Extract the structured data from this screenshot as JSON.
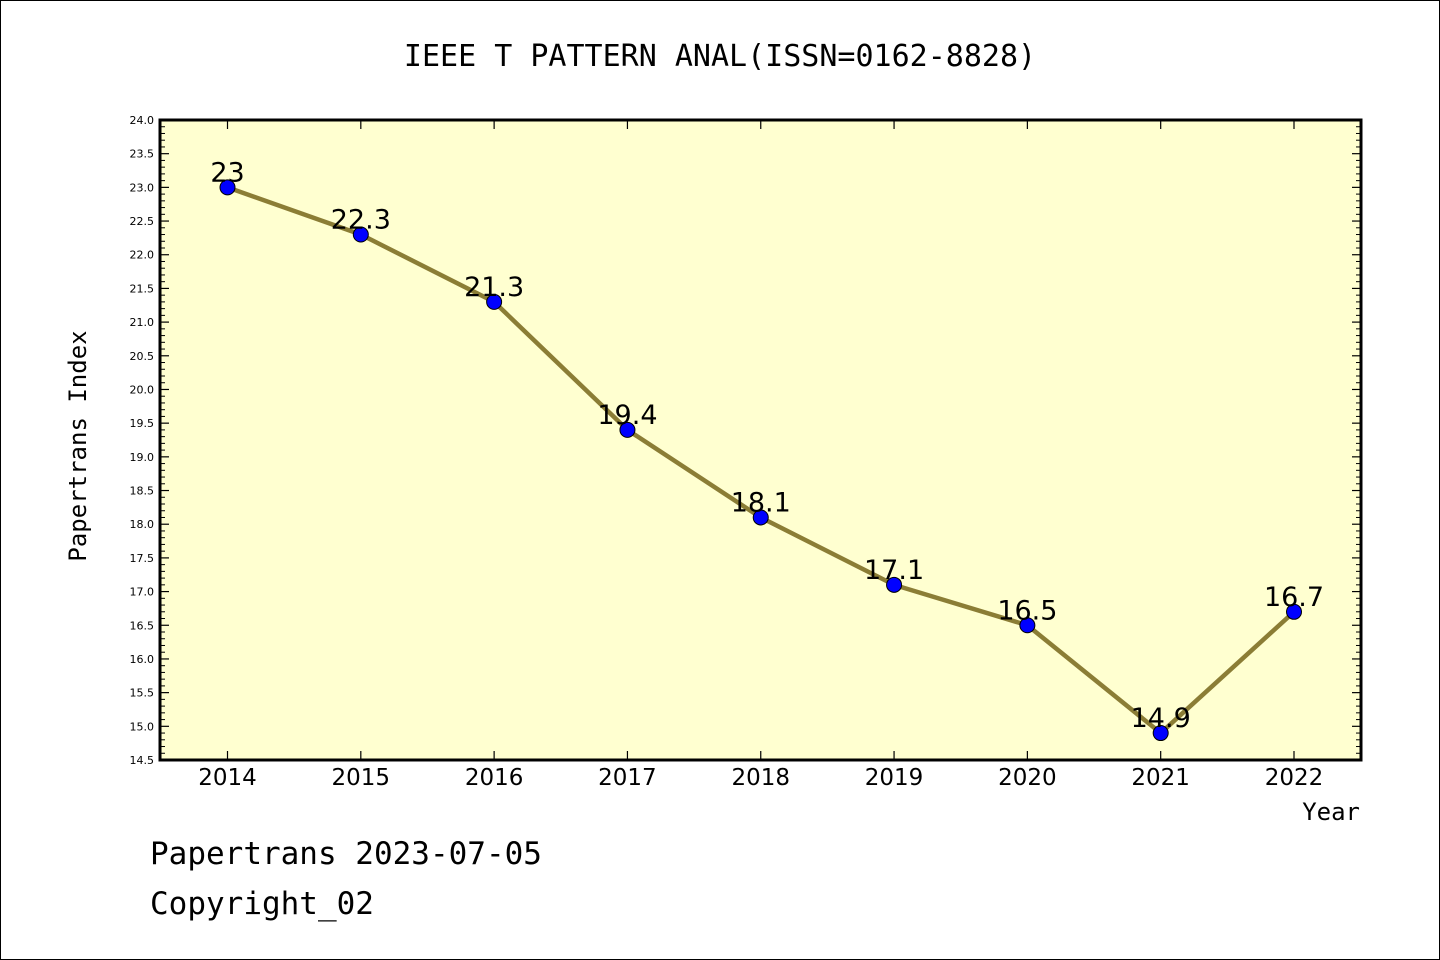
{
  "chart_data": {
    "type": "line",
    "title": "IEEE T PATTERN ANAL(ISSN=0162-8828)",
    "xlabel": "Year",
    "ylabel": "Papertrans Index",
    "categories": [
      "2014",
      "2015",
      "2016",
      "2017",
      "2018",
      "2019",
      "2020",
      "2021",
      "2022"
    ],
    "series": [
      {
        "values": [
          23,
          22.3,
          21.3,
          19.4,
          18.1,
          17.1,
          16.5,
          14.9,
          16.7
        ],
        "labels": [
          "23",
          "22.3",
          "21.3",
          "19.4",
          "18.1",
          "17.1",
          "16.5",
          "14.9",
          "16.7"
        ]
      }
    ],
    "ylim": [
      14.5,
      24.0
    ],
    "y_ticks": [
      "14.5",
      "15.0",
      "15.5",
      "16.0",
      "16.5",
      "17.0",
      "17.5",
      "18.0",
      "18.5",
      "19.0",
      "19.5",
      "20.0",
      "20.5",
      "21.0",
      "21.5",
      "22.0",
      "22.5",
      "23.0",
      "23.5",
      "24.0"
    ],
    "colors": {
      "plot_background": "#ffffd0",
      "line": "#8b7d35",
      "marker": "#0000ff"
    },
    "grid": false
  },
  "footer": {
    "line1": "Papertrans 2023-07-05",
    "line2": "Copyright_02"
  }
}
